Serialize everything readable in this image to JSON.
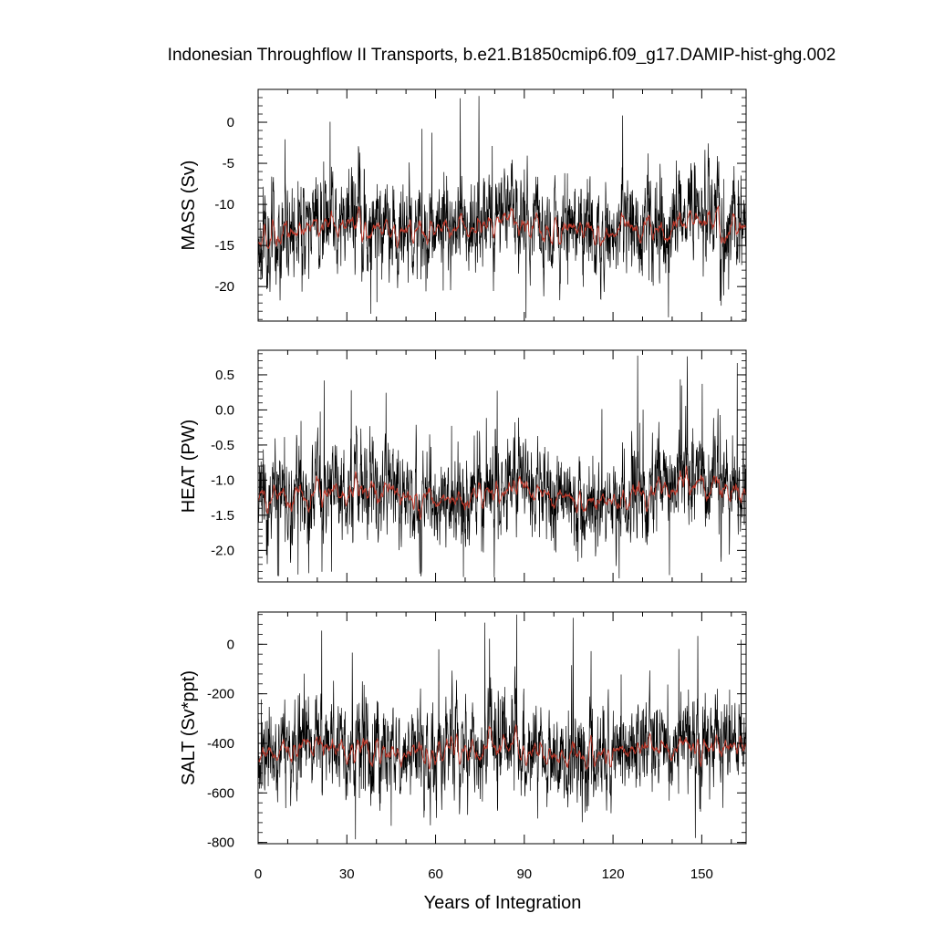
{
  "title": "Indonesian Throughflow II Transports, b.e21.B1850cmip6.f09_g17.DAMIP-hist-ghg.002",
  "xlabel": "Years of Integration",
  "colors": {
    "raw": "#000000",
    "smoothed": "#c0392b",
    "frame": "#000000"
  },
  "chart_data": {
    "type": "line",
    "title": "Indonesian Throughflow II Transports, b.e21.B1850cmip6.f09_g17.DAMIP-hist-ghg.002",
    "xlabel": "Years of Integration",
    "xlim": [
      0,
      165
    ],
    "xticks": [
      0,
      30,
      60,
      90,
      120,
      150
    ],
    "xtick_labels": [
      "0",
      "30",
      "60",
      "90",
      "120",
      "150"
    ],
    "panels": [
      {
        "ylabel": "MASS (Sv)",
        "ylim": [
          -24.2,
          4.0
        ],
        "yticks": [
          0,
          -5,
          -10,
          -15,
          -20
        ],
        "ytick_labels": [
          "0",
          "-5",
          "-10",
          "-15",
          "-20"
        ],
        "mean": -13.3,
        "spread": 3.2,
        "range": [
          -24,
          3.5
        ],
        "seed": 11
      },
      {
        "ylabel": "HEAT (PW)",
        "ylim": [
          -2.45,
          0.85
        ],
        "yticks": [
          0.5,
          0.0,
          -0.5,
          -1.0,
          -1.5,
          -2.0
        ],
        "ytick_labels": [
          "0.5",
          "0.0",
          "-0.5",
          "-1.0",
          "-1.5",
          "-2.0"
        ],
        "mean": -1.25,
        "spread": 0.37,
        "range": [
          -2.4,
          0.8
        ],
        "seed": 23
      },
      {
        "ylabel": "SALT (Sv*ppt)",
        "ylim": [
          -805,
          130
        ],
        "yticks": [
          0,
          -200,
          -400,
          -600,
          -800
        ],
        "ytick_labels": [
          "0",
          "-200",
          "-400",
          "-600",
          "-800"
        ],
        "mean": -440,
        "spread": 105,
        "range": [
          -800,
          120
        ],
        "seed": 37
      }
    ],
    "series": [
      {
        "values": "monthly transport (noisy black line), approx. 1980 points per panel"
      },
      {
        "values": "smoothed transport (red line)"
      }
    ]
  }
}
